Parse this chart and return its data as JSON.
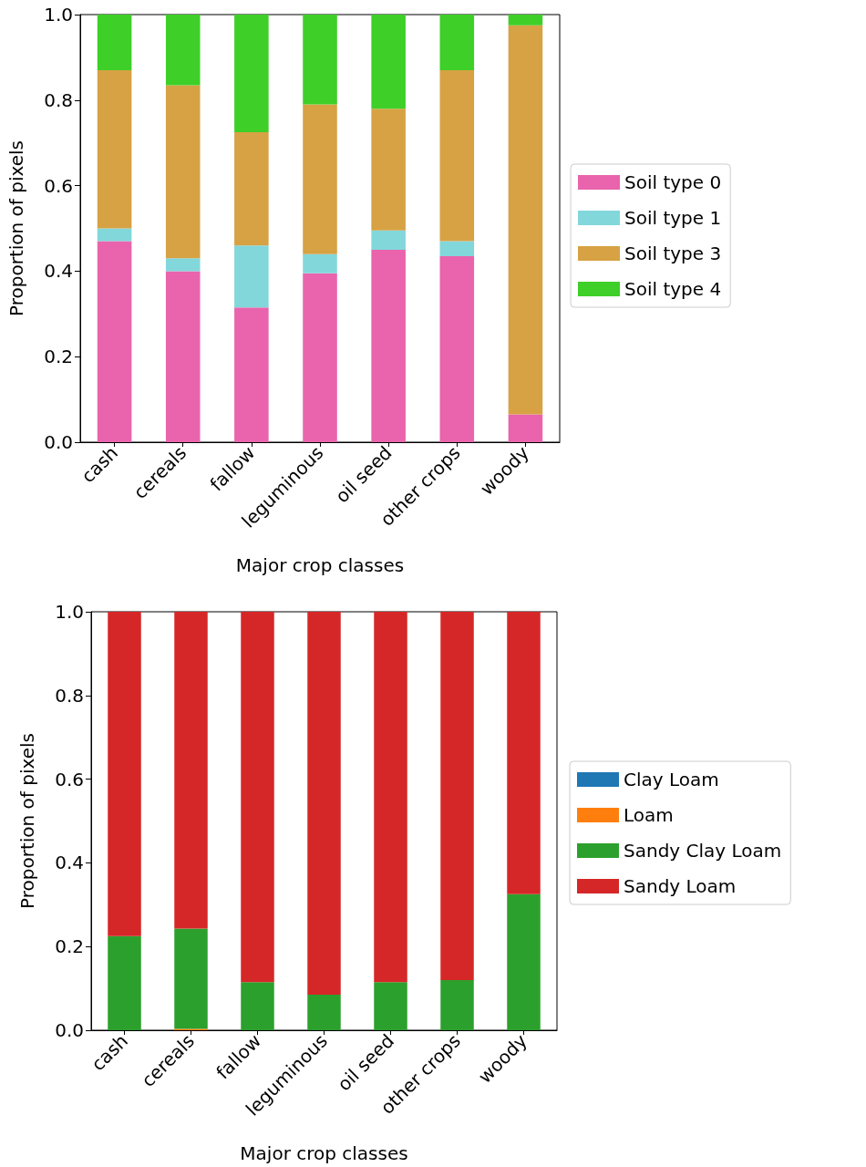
{
  "chart_data": [
    {
      "type": "bar",
      "stacked": true,
      "xlabel": "Major crop classes",
      "ylabel": "Proportion of pixels",
      "categories": [
        "cash",
        "cereals",
        "fallow",
        "leguminous",
        "oil seed",
        "other crops",
        "woody"
      ],
      "series": [
        {
          "name": "Soil type 0",
          "color": "#e964ac",
          "values": [
            0.47,
            0.4,
            0.315,
            0.395,
            0.45,
            0.435,
            0.065
          ]
        },
        {
          "name": "Soil type 1",
          "color": "#82d7db",
          "values": [
            0.03,
            0.03,
            0.145,
            0.045,
            0.045,
            0.035,
            0
          ]
        },
        {
          "name": "Soil type 3",
          "color": "#d6a243",
          "values": [
            0.37,
            0.405,
            0.265,
            0.35,
            0.285,
            0.4,
            0.91
          ]
        },
        {
          "name": "Soil type 4",
          "color": "#3ecf28",
          "values": [
            0.13,
            0.165,
            0.275,
            0.21,
            0.22,
            0.13,
            0.025
          ]
        }
      ],
      "ylim": [
        0,
        1
      ],
      "yticks": [
        {
          "value": 0,
          "label": "0.0"
        },
        {
          "value": 0.2,
          "label": "0.2"
        },
        {
          "value": 0.4,
          "label": "0.4"
        },
        {
          "value": 0.6,
          "label": "0.6"
        },
        {
          "value": 0.8,
          "label": "0.8"
        },
        {
          "value": 1,
          "label": "1.0"
        }
      ],
      "grid": false,
      "legend": "right"
    },
    {
      "type": "bar",
      "stacked": true,
      "xlabel": "Major crop classes",
      "ylabel": "Proportion of pixels",
      "categories": [
        "cash",
        "cereals",
        "fallow",
        "leguminous",
        "oil seed",
        "other crops",
        "woody"
      ],
      "series": [
        {
          "name": "Clay Loam",
          "color": "#1f77b4",
          "values": [
            0,
            0,
            0,
            0,
            0,
            0,
            0
          ]
        },
        {
          "name": "Loam",
          "color": "#ff7f0e",
          "values": [
            0,
            0.003,
            0,
            0,
            0,
            0,
            0
          ]
        },
        {
          "name": "Sandy Clay Loam",
          "color": "#2ca02c",
          "values": [
            0.225,
            0.24,
            0.115,
            0.085,
            0.115,
            0.12,
            0.325
          ]
        },
        {
          "name": "Sandy Loam",
          "color": "#d62728",
          "values": [
            0.775,
            0.757,
            0.885,
            0.915,
            0.885,
            0.88,
            0.675
          ]
        }
      ],
      "ylim": [
        0,
        1
      ],
      "yticks": [
        {
          "value": 0,
          "label": "0.0"
        },
        {
          "value": 0.2,
          "label": "0.2"
        },
        {
          "value": 0.4,
          "label": "0.4"
        },
        {
          "value": 0.6,
          "label": "0.6"
        },
        {
          "value": 0.8,
          "label": "0.8"
        },
        {
          "value": 1,
          "label": "1.0"
        }
      ],
      "grid": false,
      "legend": "right"
    }
  ]
}
